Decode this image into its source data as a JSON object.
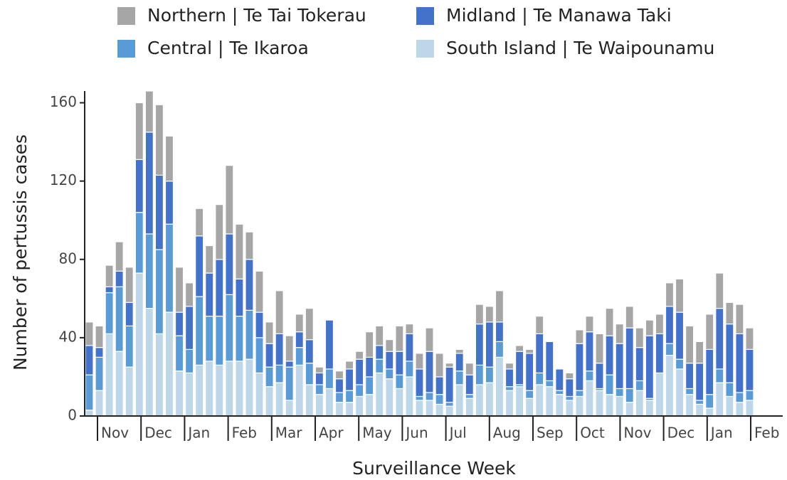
{
  "chart_data": {
    "type": "stacked_bar",
    "xlabel": "Surveillance Week",
    "ylabel": "Number of pertussis cases",
    "month_labels": [
      "Nov",
      "Dec",
      "Jan",
      "Feb",
      "Mar",
      "Apr",
      "May",
      "Jun",
      "Jul",
      "Aug",
      "Sep",
      "Oct",
      "Nov",
      "Dec",
      "Jan",
      "Feb"
    ],
    "ylim": [
      0,
      166
    ],
    "yticks": [
      0,
      40,
      80,
      120,
      160
    ],
    "series": [
      {
        "name": "South Island | Te Waipounamu",
        "color": "#bdd7e9",
        "values": [
          3,
          13,
          42,
          33,
          25,
          73,
          55,
          42,
          53,
          23,
          22,
          26,
          28,
          26,
          28,
          28,
          29,
          22,
          15,
          17,
          8,
          26,
          16,
          11,
          14,
          7,
          7,
          10,
          11,
          22,
          19,
          14,
          20,
          8,
          8,
          6,
          5,
          16,
          9,
          16,
          17,
          30,
          13,
          15,
          9,
          16,
          15,
          11,
          8,
          10,
          18,
          13,
          11,
          10,
          7,
          13,
          8,
          22,
          31,
          24,
          11,
          6,
          4,
          17,
          10,
          7,
          8
        ]
      },
      {
        "name": "Central | Te Ikaroa",
        "color": "#5b9bd5",
        "values": [
          18,
          17,
          21,
          33,
          21,
          31,
          38,
          43,
          45,
          18,
          12,
          35,
          23,
          25,
          34,
          23,
          25,
          18,
          10,
          9,
          17,
          9,
          11,
          5,
          10,
          5,
          6,
          6,
          9,
          7,
          5,
          7,
          8,
          2,
          4,
          5,
          2,
          7,
          2,
          10,
          8,
          8,
          2,
          1,
          4,
          6,
          3,
          2,
          2,
          3,
          5,
          1,
          10,
          4,
          7,
          5,
          1,
          0,
          6,
          5,
          3,
          2,
          7,
          7,
          7,
          5,
          5
        ]
      },
      {
        "name": "Midland | Te Manawa Taki",
        "color": "#4472c8",
        "values": [
          15,
          5,
          3,
          8,
          12,
          27,
          52,
          38,
          22,
          12,
          22,
          31,
          22,
          29,
          31,
          19,
          26,
          13,
          12,
          16,
          3,
          8,
          12,
          6,
          25,
          7,
          11,
          13,
          10,
          7,
          9,
          12,
          14,
          14,
          21,
          9,
          18,
          9,
          10,
          21,
          23,
          10,
          9,
          17,
          19,
          20,
          20,
          11,
          9,
          24,
          20,
          13,
          20,
          23,
          31,
          17,
          32,
          20,
          19,
          24,
          13,
          19,
          23,
          31,
          30,
          30,
          21
        ]
      },
      {
        "name": "Northern | Te Tai Tokerau",
        "color": "#a6a6a6",
        "values": [
          12,
          11,
          11,
          15,
          18,
          29,
          21,
          36,
          23,
          23,
          12,
          14,
          14,
          28,
          35,
          28,
          14,
          21,
          11,
          22,
          13,
          9,
          16,
          3,
          0,
          4,
          4,
          4,
          13,
          10,
          6,
          13,
          5,
          8,
          12,
          12,
          2,
          2,
          6,
          10,
          8,
          16,
          3,
          3,
          2,
          9,
          0,
          0,
          3,
          7,
          8,
          15,
          14,
          10,
          11,
          10,
          8,
          10,
          12,
          17,
          19,
          11,
          18,
          18,
          11,
          15,
          11
        ]
      }
    ],
    "legend_order": [
      3,
      2,
      1,
      0
    ]
  }
}
